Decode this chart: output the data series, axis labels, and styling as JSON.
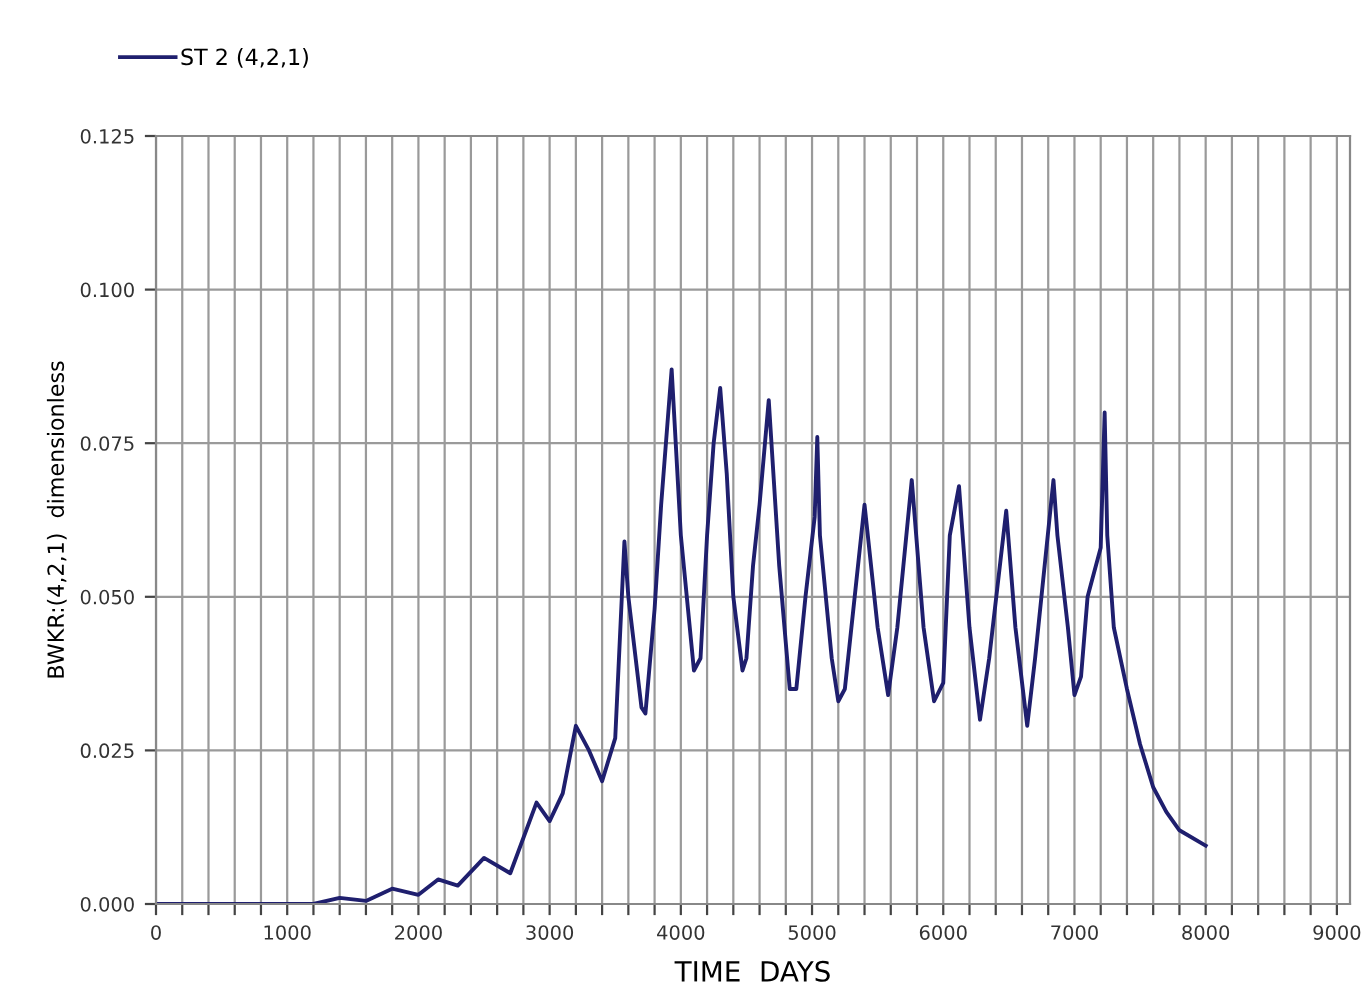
{
  "chart_data": {
    "type": "line",
    "xlabel": "TIME  DAYS",
    "ylabel": "BWKR:(4,2,1)  dimensionless",
    "xlim": [
      0,
      9100
    ],
    "ylim": [
      0,
      0.125
    ],
    "xticks": [
      0,
      {
        "value": 200,
        "label": null
      },
      {
        "value": 400,
        "label": null
      },
      {
        "value": 600,
        "label": null
      },
      {
        "value": 800,
        "label": null
      },
      1000,
      {
        "value": 1200,
        "label": null
      },
      {
        "value": 1400,
        "label": null
      },
      {
        "value": 1600,
        "label": null
      },
      {
        "value": 1800,
        "label": null
      },
      2000,
      {
        "value": 2200,
        "label": null
      },
      {
        "value": 2400,
        "label": null
      },
      {
        "value": 2600,
        "label": null
      },
      {
        "value": 2800,
        "label": null
      },
      3000,
      {
        "value": 3200,
        "label": null
      },
      {
        "value": 3400,
        "label": null
      },
      {
        "value": 3600,
        "label": null
      },
      {
        "value": 3800,
        "label": null
      },
      4000,
      {
        "value": 4200,
        "label": null
      },
      {
        "value": 4400,
        "label": null
      },
      {
        "value": 4600,
        "label": null
      },
      {
        "value": 4800,
        "label": null
      },
      5000,
      {
        "value": 5200,
        "label": null
      },
      {
        "value": 5400,
        "label": null
      },
      {
        "value": 5600,
        "label": null
      },
      {
        "value": 5800,
        "label": null
      },
      6000,
      {
        "value": 6200,
        "label": null
      },
      {
        "value": 6400,
        "label": null
      },
      {
        "value": 6600,
        "label": null
      },
      {
        "value": 6800,
        "label": null
      },
      7000,
      {
        "value": 7200,
        "label": null
      },
      {
        "value": 7400,
        "label": null
      },
      {
        "value": 7600,
        "label": null
      },
      {
        "value": 7800,
        "label": null
      },
      8000,
      {
        "value": 8200,
        "label": null
      },
      {
        "value": 8400,
        "label": null
      },
      {
        "value": 8600,
        "label": null
      },
      {
        "value": 8800,
        "label": null
      },
      9000
    ],
    "yticks": [
      {
        "value": 0,
        "label": "0.000"
      },
      {
        "value": 0.025,
        "label": "0.025"
      },
      {
        "value": 0.05,
        "label": "0.050"
      },
      {
        "value": 0.075,
        "label": "0.075"
      },
      {
        "value": 0.1,
        "label": "0.100"
      },
      {
        "value": 0.125,
        "label": "0.125"
      }
    ],
    "grid": true,
    "legend": "top left",
    "marker": "none",
    "line_style": "solid",
    "series": [
      {
        "name": "ST 2 (4,2,1)",
        "color": "#1f1f6e",
        "x": [
          0,
          1000,
          1200,
          1400,
          1600,
          1800,
          2000,
          2150,
          2300,
          2500,
          2700,
          2900,
          3000,
          3100,
          3200,
          3300,
          3400,
          3500,
          3570,
          3600,
          3700,
          3730,
          3800,
          3850,
          3930,
          4000,
          4100,
          4150,
          4200,
          4250,
          4300,
          4350,
          4400,
          4470,
          4500,
          4550,
          4600,
          4670,
          4750,
          4830,
          4880,
          4950,
          5020,
          5040,
          5060,
          5150,
          5200,
          5250,
          5300,
          5400,
          5500,
          5580,
          5650,
          5760,
          5850,
          5930,
          6000,
          6050,
          6120,
          6200,
          6280,
          6350,
          6480,
          6550,
          6640,
          6700,
          6840,
          6870,
          6950,
          7000,
          7050,
          7100,
          7200,
          7230,
          7250,
          7300,
          7400,
          7500,
          7600,
          7700,
          7800,
          8000
        ],
        "values": [
          0,
          0,
          0,
          0.001,
          0.0005,
          0.0025,
          0.0015,
          0.004,
          0.003,
          0.0075,
          0.005,
          0.0165,
          0.0135,
          0.018,
          0.029,
          0.025,
          0.02,
          0.027,
          0.059,
          0.05,
          0.032,
          0.031,
          0.048,
          0.065,
          0.087,
          0.06,
          0.038,
          0.04,
          0.06,
          0.075,
          0.084,
          0.07,
          0.05,
          0.038,
          0.04,
          0.055,
          0.065,
          0.082,
          0.055,
          0.035,
          0.035,
          0.05,
          0.063,
          0.076,
          0.06,
          0.04,
          0.033,
          0.035,
          0.045,
          0.065,
          0.045,
          0.034,
          0.045,
          0.069,
          0.045,
          0.033,
          0.036,
          0.06,
          0.068,
          0.045,
          0.03,
          0.04,
          0.064,
          0.045,
          0.029,
          0.04,
          0.069,
          0.06,
          0.045,
          0.034,
          0.037,
          0.05,
          0.058,
          0.08,
          0.06,
          0.045,
          0.035,
          0.026,
          0.019,
          0.015,
          0.012,
          0.0095
        ]
      }
    ]
  }
}
